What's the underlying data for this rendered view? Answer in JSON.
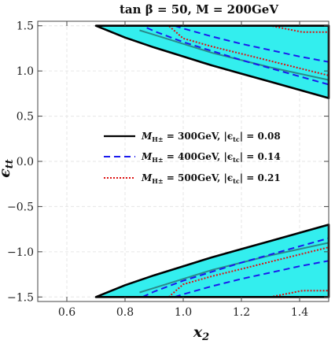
{
  "chart_data": {
    "type": "area",
    "title": "tan β = 50, M = 200GeV",
    "xlabel": "x₂",
    "ylabel": "ϵₜₜ",
    "xlim": [
      0.5,
      1.5
    ],
    "ylim": [
      -1.55,
      1.55
    ],
    "xticks": [
      "0.6",
      "0.8",
      "1.0",
      "1.2",
      "1.4"
    ],
    "yticks": [
      "1.5",
      "1.0",
      "0.5",
      "0.0",
      "−0.5",
      "−1.0",
      "−1.5"
    ],
    "grid": true,
    "legend_position": "center",
    "series": [
      {
        "name": "M_H± = 300GeV, |ϵ_tc| = 0.08",
        "style": "solid",
        "color": "#000000",
        "fill": "#33eeee",
        "upper_region": {
          "top": [
            [
              0.7,
              1.5
            ],
            [
              0.8,
              1.5
            ],
            [
              1.5,
              1.5
            ]
          ],
          "bottom": [
            [
              0.7,
              1.5
            ],
            [
              0.8,
              1.37
            ],
            [
              0.9,
              1.26
            ],
            [
              1.0,
              1.16
            ],
            [
              1.1,
              1.06
            ],
            [
              1.2,
              0.97
            ],
            [
              1.3,
              0.88
            ],
            [
              1.4,
              0.79
            ],
            [
              1.5,
              0.7
            ]
          ],
          "right_x": 1.5,
          "right_top": 1.5,
          "right_bottom": 0.7
        },
        "upper_polygon": [
          [
            0.7,
            1.5
          ],
          [
            0.8,
            1.5
          ],
          [
            0.9,
            1.5
          ],
          [
            1.0,
            1.5
          ],
          [
            1.1,
            1.5
          ],
          [
            1.2,
            1.5
          ],
          [
            1.3,
            1.5
          ],
          [
            1.4,
            1.5
          ],
          [
            1.5,
            1.5
          ],
          [
            1.5,
            0.7
          ],
          [
            1.4,
            0.79
          ],
          [
            1.3,
            0.88
          ],
          [
            1.2,
            0.97
          ],
          [
            1.1,
            1.06
          ],
          [
            1.0,
            1.16
          ],
          [
            0.9,
            1.26
          ],
          [
            0.8,
            1.37
          ],
          [
            0.7,
            1.5
          ]
        ],
        "upper_inner_edge": [
          [
            0.85,
            1.5
          ],
          [
            0.9,
            1.46
          ],
          [
            1.0,
            1.37
          ],
          [
            1.1,
            1.29
          ],
          [
            1.2,
            1.21
          ],
          [
            1.3,
            1.14
          ],
          [
            1.4,
            1.07
          ],
          [
            1.5,
            1.0
          ]
        ],
        "upper_polygon_closed_top_right": [
          [
            0.85,
            1.5
          ],
          [
            1.5,
            1.5
          ],
          [
            1.5,
            1.0
          ]
        ],
        "lower_polygon": [
          [
            0.7,
            -1.5
          ],
          [
            0.8,
            -1.37
          ],
          [
            0.9,
            -1.26
          ],
          [
            1.0,
            -1.16
          ],
          [
            1.1,
            -1.06
          ],
          [
            1.2,
            -0.97
          ],
          [
            1.3,
            -0.88
          ],
          [
            1.4,
            -0.79
          ],
          [
            1.5,
            -0.7
          ],
          [
            1.5,
            -1.5
          ],
          [
            0.7,
            -1.5
          ]
        ],
        "lower_inner_edge": [
          [
            0.85,
            -1.5
          ],
          [
            0.9,
            -1.46
          ],
          [
            1.0,
            -1.37
          ],
          [
            1.1,
            -1.29
          ],
          [
            1.2,
            -1.21
          ],
          [
            1.3,
            -1.14
          ],
          [
            1.4,
            -1.07
          ],
          [
            1.5,
            -1.0
          ]
        ],
        "upper_center": [
          [
            0.85,
            1.45
          ],
          [
            0.9,
            1.4
          ],
          [
            1.0,
            1.3
          ],
          [
            1.1,
            1.2
          ],
          [
            1.2,
            1.12
          ],
          [
            1.3,
            1.04
          ],
          [
            1.4,
            0.97
          ],
          [
            1.5,
            0.9
          ]
        ],
        "lower_center": [
          [
            0.85,
            -1.45
          ],
          [
            0.9,
            -1.4
          ],
          [
            1.0,
            -1.3
          ],
          [
            1.1,
            -1.2
          ],
          [
            1.2,
            -1.12
          ],
          [
            1.3,
            -1.04
          ],
          [
            1.4,
            -0.97
          ],
          [
            1.5,
            -0.9
          ]
        ]
      },
      {
        "name": "M_H± = 400GeV, |ϵ_tc| = 0.14",
        "style": "dashed",
        "color": "#1a1aee",
        "upper_polygon": [
          [
            0.86,
            1.5
          ],
          [
            1.5,
            1.5
          ],
          [
            1.5,
            0.85
          ],
          [
            1.4,
            0.94
          ],
          [
            1.3,
            1.03
          ],
          [
            1.2,
            1.12
          ],
          [
            1.1,
            1.22
          ],
          [
            1.0,
            1.32
          ],
          [
            0.9,
            1.44
          ],
          [
            0.86,
            1.5
          ]
        ],
        "upper_inner_edge": [
          [
            0.97,
            1.5
          ],
          [
            1.0,
            1.47
          ],
          [
            1.1,
            1.38
          ],
          [
            1.2,
            1.3
          ],
          [
            1.3,
            1.23
          ],
          [
            1.4,
            1.16
          ],
          [
            1.5,
            1.1
          ]
        ],
        "lower_polygon": [
          [
            0.86,
            -1.5
          ],
          [
            0.9,
            -1.44
          ],
          [
            1.0,
            -1.32
          ],
          [
            1.1,
            -1.22
          ],
          [
            1.2,
            -1.12
          ],
          [
            1.3,
            -1.03
          ],
          [
            1.4,
            -0.94
          ],
          [
            1.5,
            -0.85
          ],
          [
            1.5,
            -1.5
          ],
          [
            0.86,
            -1.5
          ]
        ],
        "lower_inner_edge": [
          [
            0.97,
            -1.5
          ],
          [
            1.0,
            -1.47
          ],
          [
            1.1,
            -1.38
          ],
          [
            1.2,
            -1.3
          ],
          [
            1.3,
            -1.23
          ],
          [
            1.4,
            -1.16
          ],
          [
            1.5,
            -1.1
          ]
        ]
      },
      {
        "name": "M_H± = 500GeV, |ϵ_tc| = 0.21",
        "style": "dotted",
        "color": "#dd1111",
        "upper_polygon": [
          [
            0.95,
            1.5
          ],
          [
            1.3,
            1.5
          ],
          [
            1.41,
            1.43
          ],
          [
            1.5,
            1.43
          ],
          [
            1.5,
            0.95
          ],
          [
            1.4,
            1.03
          ],
          [
            1.3,
            1.11
          ],
          [
            1.2,
            1.19
          ],
          [
            1.1,
            1.27
          ],
          [
            1.0,
            1.36
          ],
          [
            0.95,
            1.5
          ]
        ],
        "lower_polygon": [
          [
            0.95,
            -1.5
          ],
          [
            1.0,
            -1.36
          ],
          [
            1.1,
            -1.27
          ],
          [
            1.2,
            -1.19
          ],
          [
            1.3,
            -1.11
          ],
          [
            1.4,
            -1.03
          ],
          [
            1.5,
            -0.95
          ],
          [
            1.5,
            -1.43
          ],
          [
            1.41,
            -1.43
          ],
          [
            1.3,
            -1.5
          ],
          [
            0.95,
            -1.5
          ]
        ]
      }
    ]
  },
  "legend": {
    "items": [
      {
        "label_main": "M",
        "label_sub": "H±",
        "label_rest": " = 300GeV, |ϵ",
        "label_sub2": "tc",
        "label_end": "| = 0.08"
      },
      {
        "label_main": "M",
        "label_sub": "H±",
        "label_rest": " = 400GeV, |ϵ",
        "label_sub2": "tc",
        "label_end": "| = 0.14"
      },
      {
        "label_main": "M",
        "label_sub": "H±",
        "label_rest": " = 500GeV, |ϵ",
        "label_sub2": "tc",
        "label_end": "| = 0.21"
      }
    ]
  },
  "colors": {
    "band_fill": "#33eeee",
    "center_line": "#2a8a8a",
    "grid": "#e6e6e6",
    "frame": "#444444"
  }
}
